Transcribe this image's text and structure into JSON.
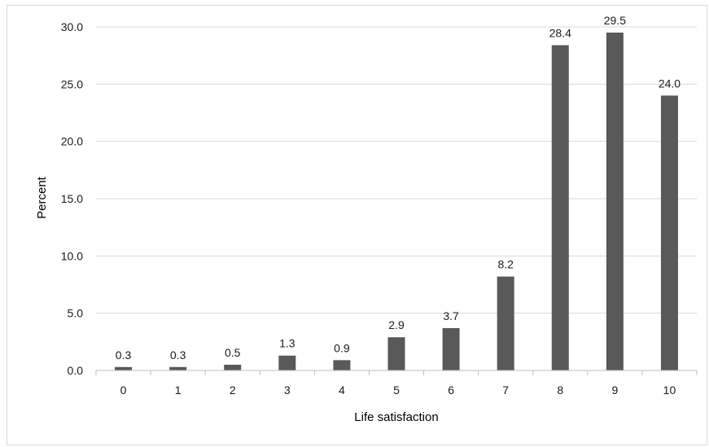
{
  "chart_data": {
    "type": "bar",
    "title": "",
    "xlabel": "Life satisfaction",
    "ylabel": "Percent",
    "categories": [
      "0",
      "1",
      "2",
      "3",
      "4",
      "5",
      "6",
      "7",
      "8",
      "9",
      "10"
    ],
    "values": [
      0.3,
      0.3,
      0.5,
      1.3,
      0.9,
      2.9,
      3.7,
      8.2,
      28.4,
      29.5,
      24.0
    ],
    "value_labels": [
      "0.3",
      "0.3",
      "0.5",
      "1.3",
      "0.9",
      "2.9",
      "3.7",
      "8.2",
      "28.4",
      "29.5",
      "24.0"
    ],
    "ylim": [
      0,
      30
    ],
    "yticks": [
      0,
      5,
      10,
      15,
      20,
      25,
      30
    ],
    "ytick_labels": [
      "0.0",
      "5.0",
      "10.0",
      "15.0",
      "20.0",
      "25.0",
      "30.0"
    ],
    "grid": true,
    "legend": "none",
    "colors": {
      "bar": "#595959",
      "grid": "#d9d9d9",
      "axis": "#bfbfbf"
    }
  }
}
